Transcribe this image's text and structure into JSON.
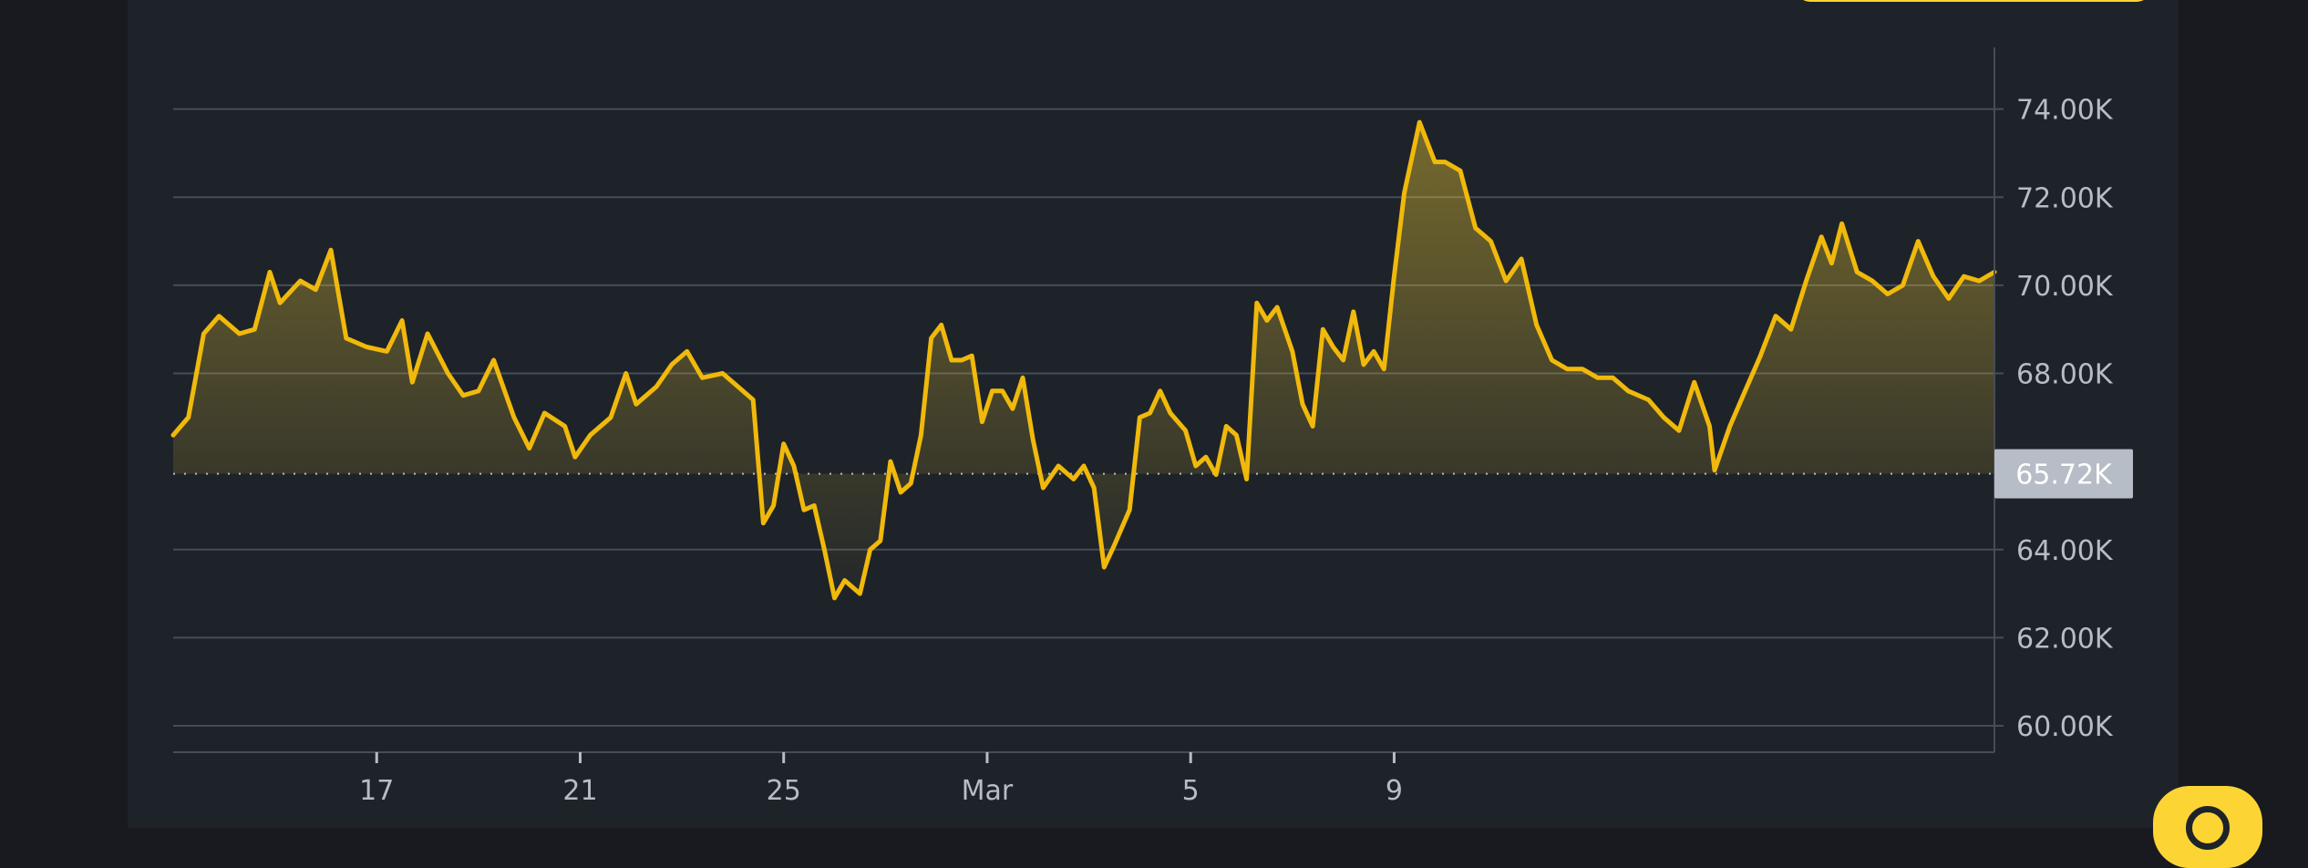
{
  "chart_data": {
    "type": "area",
    "title": "",
    "xlabel": "",
    "ylabel": "",
    "x_ticks": [
      "17",
      "21",
      "25",
      "Mar",
      "5",
      "9"
    ],
    "y_ticks": [
      "74.00K",
      "72.00K",
      "70.00K",
      "68.00K",
      "64.00K",
      "62.00K",
      "60.00K"
    ],
    "ylim": [
      59400,
      75400
    ],
    "baseline": 65720,
    "baseline_label": "65.72K",
    "grid": true,
    "line_color": "#f0b90b",
    "series": [
      {
        "values": [
          [
            13.0,
            66600
          ],
          [
            13.3,
            67000
          ],
          [
            13.6,
            68900
          ],
          [
            13.9,
            69300
          ],
          [
            14.3,
            68900
          ],
          [
            14.6,
            69000
          ],
          [
            14.9,
            70300
          ],
          [
            15.1,
            69600
          ],
          [
            15.5,
            70100
          ],
          [
            15.8,
            69900
          ],
          [
            16.1,
            70800
          ],
          [
            16.4,
            68800
          ],
          [
            16.8,
            68600
          ],
          [
            17.2,
            68500
          ],
          [
            17.5,
            69200
          ],
          [
            17.7,
            67800
          ],
          [
            18.0,
            68900
          ],
          [
            18.4,
            68000
          ],
          [
            18.7,
            67500
          ],
          [
            19.0,
            67600
          ],
          [
            19.3,
            68300
          ],
          [
            19.7,
            67000
          ],
          [
            20.0,
            66300
          ],
          [
            20.3,
            67100
          ],
          [
            20.7,
            66800
          ],
          [
            20.9,
            66100
          ],
          [
            21.2,
            66600
          ],
          [
            21.6,
            67000
          ],
          [
            21.9,
            68000
          ],
          [
            22.1,
            67300
          ],
          [
            22.5,
            67700
          ],
          [
            22.8,
            68200
          ],
          [
            23.1,
            68500
          ],
          [
            23.4,
            67900
          ],
          [
            23.8,
            68000
          ],
          [
            24.1,
            67700
          ],
          [
            24.4,
            67400
          ],
          [
            24.6,
            64600
          ],
          [
            24.8,
            65000
          ],
          [
            25.0,
            66400
          ],
          [
            25.2,
            65900
          ],
          [
            25.4,
            64900
          ],
          [
            25.6,
            65000
          ],
          [
            25.8,
            64000
          ],
          [
            26.0,
            62900
          ],
          [
            26.2,
            63300
          ],
          [
            26.5,
            63000
          ],
          [
            26.7,
            64000
          ],
          [
            26.9,
            64200
          ],
          [
            27.1,
            66000
          ],
          [
            27.3,
            65300
          ],
          [
            27.5,
            65500
          ],
          [
            27.7,
            66600
          ],
          [
            27.9,
            68800
          ],
          [
            28.1,
            69100
          ],
          [
            28.3,
            68300
          ],
          [
            28.5,
            68300
          ],
          [
            28.7,
            68400
          ],
          [
            28.9,
            66900
          ],
          [
            29.1,
            67600
          ],
          [
            29.3,
            67600
          ],
          [
            29.5,
            67200
          ],
          [
            29.7,
            67900
          ],
          [
            29.9,
            66500
          ],
          [
            30.1,
            65400
          ],
          [
            30.4,
            65900
          ],
          [
            30.7,
            65600
          ],
          [
            30.9,
            65900
          ],
          [
            31.1,
            65400
          ],
          [
            31.3,
            63600
          ],
          [
            31.5,
            64100
          ],
          [
            31.8,
            64900
          ],
          [
            32.0,
            67000
          ],
          [
            32.2,
            67100
          ],
          [
            32.4,
            67600
          ],
          [
            32.6,
            67100
          ],
          [
            32.9,
            66700
          ],
          [
            33.1,
            65900
          ],
          [
            33.3,
            66100
          ],
          [
            33.5,
            65700
          ],
          [
            33.7,
            66800
          ],
          [
            33.9,
            66600
          ],
          [
            34.1,
            65600
          ],
          [
            34.3,
            69600
          ],
          [
            34.5,
            69200
          ],
          [
            34.7,
            69500
          ],
          [
            35.0,
            68500
          ],
          [
            35.2,
            67300
          ],
          [
            35.4,
            66800
          ],
          [
            35.6,
            69000
          ],
          [
            35.8,
            68600
          ],
          [
            36.0,
            68300
          ],
          [
            36.2,
            69400
          ],
          [
            36.4,
            68200
          ],
          [
            36.6,
            68500
          ],
          [
            36.8,
            68100
          ],
          [
            37.0,
            70200
          ],
          [
            37.2,
            72100
          ],
          [
            37.5,
            73700
          ],
          [
            37.8,
            72800
          ],
          [
            38.0,
            72800
          ],
          [
            38.3,
            72600
          ],
          [
            38.6,
            71300
          ],
          [
            38.9,
            71000
          ],
          [
            39.2,
            70100
          ],
          [
            39.5,
            70600
          ],
          [
            39.8,
            69100
          ],
          [
            40.1,
            68300
          ],
          [
            40.4,
            68100
          ],
          [
            40.7,
            68100
          ],
          [
            41.0,
            67900
          ],
          [
            41.3,
            67900
          ],
          [
            41.6,
            67600
          ],
          [
            42.0,
            67400
          ],
          [
            42.3,
            67000
          ],
          [
            42.6,
            66700
          ],
          [
            42.9,
            67800
          ],
          [
            43.2,
            66800
          ],
          [
            43.3,
            65800
          ],
          [
            43.6,
            66800
          ],
          [
            43.9,
            67600
          ],
          [
            44.2,
            68400
          ],
          [
            44.5,
            69300
          ],
          [
            44.8,
            69000
          ],
          [
            45.1,
            70100
          ],
          [
            45.4,
            71100
          ],
          [
            45.6,
            70500
          ],
          [
            45.8,
            71400
          ],
          [
            46.1,
            70300
          ],
          [
            46.4,
            70100
          ],
          [
            46.7,
            69800
          ],
          [
            47.0,
            70000
          ],
          [
            47.3,
            71000
          ],
          [
            47.6,
            70200
          ],
          [
            47.9,
            69700
          ],
          [
            48.2,
            70200
          ],
          [
            48.5,
            70100
          ],
          [
            48.8,
            70300
          ]
        ]
      }
    ]
  }
}
